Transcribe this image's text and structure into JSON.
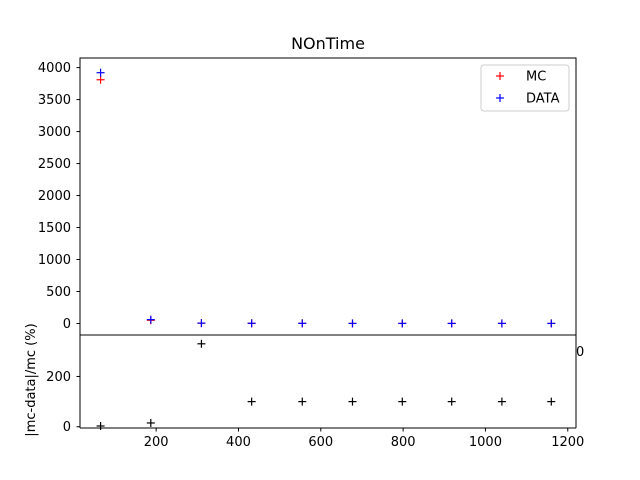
{
  "chart_data": [
    {
      "type": "scatter",
      "title": "NOnTime",
      "xlabel": "",
      "ylabel": "",
      "ylim": [
        -180,
        4150
      ],
      "yticks": [
        0,
        500,
        1000,
        1500,
        2000,
        2500,
        3000,
        3500,
        4000
      ],
      "legend": {
        "placement": "top-right"
      },
      "series": [
        {
          "name": "MC",
          "color": "#ff0000",
          "marker": "+",
          "x": [
            65,
            187,
            310,
            432,
            555,
            677,
            798,
            918,
            1040,
            1160
          ],
          "y": [
            3810,
            50,
            5,
            3,
            2,
            1,
            1,
            1,
            1,
            1
          ]
        },
        {
          "name": "DATA",
          "color": "#0000ff",
          "marker": "+",
          "x": [
            65,
            187,
            310,
            432,
            555,
            677,
            798,
            918,
            1040,
            1160
          ],
          "y": [
            3920,
            60,
            6,
            3,
            2,
            1,
            1,
            1,
            1,
            1
          ]
        }
      ]
    },
    {
      "type": "scatter",
      "title": "",
      "xlabel": "",
      "ylabel": "|mc-data|/mc (%)",
      "xlim": [
        15,
        1220
      ],
      "ylim": [
        -5,
        365
      ],
      "xticks": [
        200,
        400,
        600,
        800,
        1000,
        1200
      ],
      "yticks": [
        0,
        200
      ],
      "overflow_tick_text": "0",
      "series": [
        {
          "color": "#000000",
          "marker": "+",
          "x": [
            65,
            187,
            310,
            432,
            555,
            677,
            798,
            918,
            1040,
            1160
          ],
          "y": [
            3,
            15,
            330,
            100,
            100,
            100,
            100,
            100,
            100,
            100
          ]
        }
      ]
    }
  ]
}
